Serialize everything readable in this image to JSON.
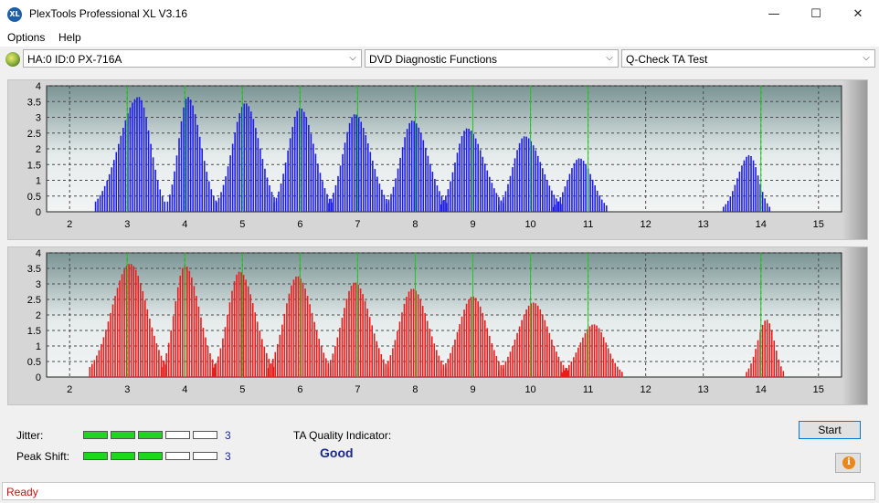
{
  "window": {
    "title": "PlexTools Professional XL V3.16",
    "icon_text": "XL",
    "minimize_glyph": "—",
    "maximize_glyph": "☐",
    "close_glyph": "✕"
  },
  "menu": {
    "items": [
      {
        "label": "Options"
      },
      {
        "label": "Help"
      }
    ]
  },
  "toolbar": {
    "drive_icon": "drive-icon",
    "drive": {
      "value": "HA:0 ID:0  PX-716A"
    },
    "function": {
      "value": "DVD Diagnostic Functions"
    },
    "test": {
      "value": "Q-Check TA Test"
    }
  },
  "colors": {
    "plot_bg_top": "#7a9494",
    "plot_bg_mid": "#e6ecec",
    "top_bars": "#1e1ee6",
    "bottom_bars": "#e61e1e",
    "marker_lines": "#1ecc1e",
    "grid": "#4a4a4a"
  },
  "chart_data": [
    {
      "name": "top",
      "type": "bar",
      "ylim": [
        0,
        4
      ],
      "xlim": [
        1.6,
        15.4
      ],
      "y_ticks": [
        "0",
        "0.5",
        "1",
        "1.5",
        "2",
        "2.5",
        "3",
        "3.5",
        "4"
      ],
      "x_ticks": [
        "2",
        "3",
        "4",
        "5",
        "6",
        "7",
        "8",
        "9",
        "10",
        "11",
        "12",
        "13",
        "14",
        "15"
      ],
      "markers_x": [
        3,
        4,
        5,
        6,
        7,
        8,
        9,
        10,
        11,
        14
      ],
      "lumps": [
        {
          "center": 3.2,
          "peak": 3.65,
          "start": 2.45,
          "end": 3.65
        },
        {
          "center": 4.05,
          "peak": 3.65,
          "start": 3.7,
          "end": 4.55
        },
        {
          "center": 5.05,
          "peak": 3.45,
          "start": 4.55,
          "end": 5.6
        },
        {
          "center": 6.0,
          "peak": 3.3,
          "start": 5.55,
          "end": 6.55
        },
        {
          "center": 6.95,
          "peak": 3.1,
          "start": 6.5,
          "end": 7.55
        },
        {
          "center": 7.95,
          "peak": 2.9,
          "start": 7.5,
          "end": 8.55
        },
        {
          "center": 8.9,
          "peak": 2.65,
          "start": 8.45,
          "end": 9.55
        },
        {
          "center": 9.9,
          "peak": 2.4,
          "start": 9.45,
          "end": 10.55
        },
        {
          "center": 10.85,
          "peak": 1.7,
          "start": 10.4,
          "end": 11.35
        },
        {
          "center": 13.8,
          "peak": 1.8,
          "start": 13.35,
          "end": 14.15
        }
      ]
    },
    {
      "name": "bottom",
      "type": "bar",
      "ylim": [
        0,
        4
      ],
      "xlim": [
        1.6,
        15.4
      ],
      "y_ticks": [
        "0",
        "0.5",
        "1",
        "1.5",
        "2",
        "2.5",
        "3",
        "3.5",
        "4"
      ],
      "x_ticks": [
        "2",
        "3",
        "4",
        "5",
        "6",
        "7",
        "8",
        "9",
        "10",
        "11",
        "12",
        "13",
        "14",
        "15"
      ],
      "markers_x": [
        3,
        4,
        5,
        6,
        7,
        8,
        9,
        10,
        11,
        14
      ],
      "lumps": [
        {
          "center": 3.05,
          "peak": 3.65,
          "start": 2.35,
          "end": 3.7
        },
        {
          "center": 4.0,
          "peak": 3.6,
          "start": 3.6,
          "end": 4.55
        },
        {
          "center": 4.95,
          "peak": 3.4,
          "start": 4.5,
          "end": 5.55
        },
        {
          "center": 5.95,
          "peak": 3.25,
          "start": 5.45,
          "end": 6.55
        },
        {
          "center": 6.95,
          "peak": 3.05,
          "start": 6.45,
          "end": 7.55
        },
        {
          "center": 7.95,
          "peak": 2.85,
          "start": 7.45,
          "end": 8.55
        },
        {
          "center": 9.0,
          "peak": 2.6,
          "start": 8.45,
          "end": 9.55
        },
        {
          "center": 10.05,
          "peak": 2.4,
          "start": 9.45,
          "end": 10.65
        },
        {
          "center": 11.1,
          "peak": 1.7,
          "start": 10.55,
          "end": 11.6
        },
        {
          "center": 14.1,
          "peak": 1.85,
          "start": 13.75,
          "end": 14.4
        }
      ]
    }
  ],
  "metrics": {
    "jitter": {
      "label": "Jitter:",
      "value": "3",
      "level": 3,
      "segments": 5
    },
    "peak_shift": {
      "label": "Peak Shift:",
      "value": "3",
      "level": 3,
      "segments": 5
    }
  },
  "quality": {
    "label": "TA Quality Indicator:",
    "value": "Good"
  },
  "buttons": {
    "start": "Start",
    "info_glyph": "i"
  },
  "status": {
    "text": "Ready"
  }
}
